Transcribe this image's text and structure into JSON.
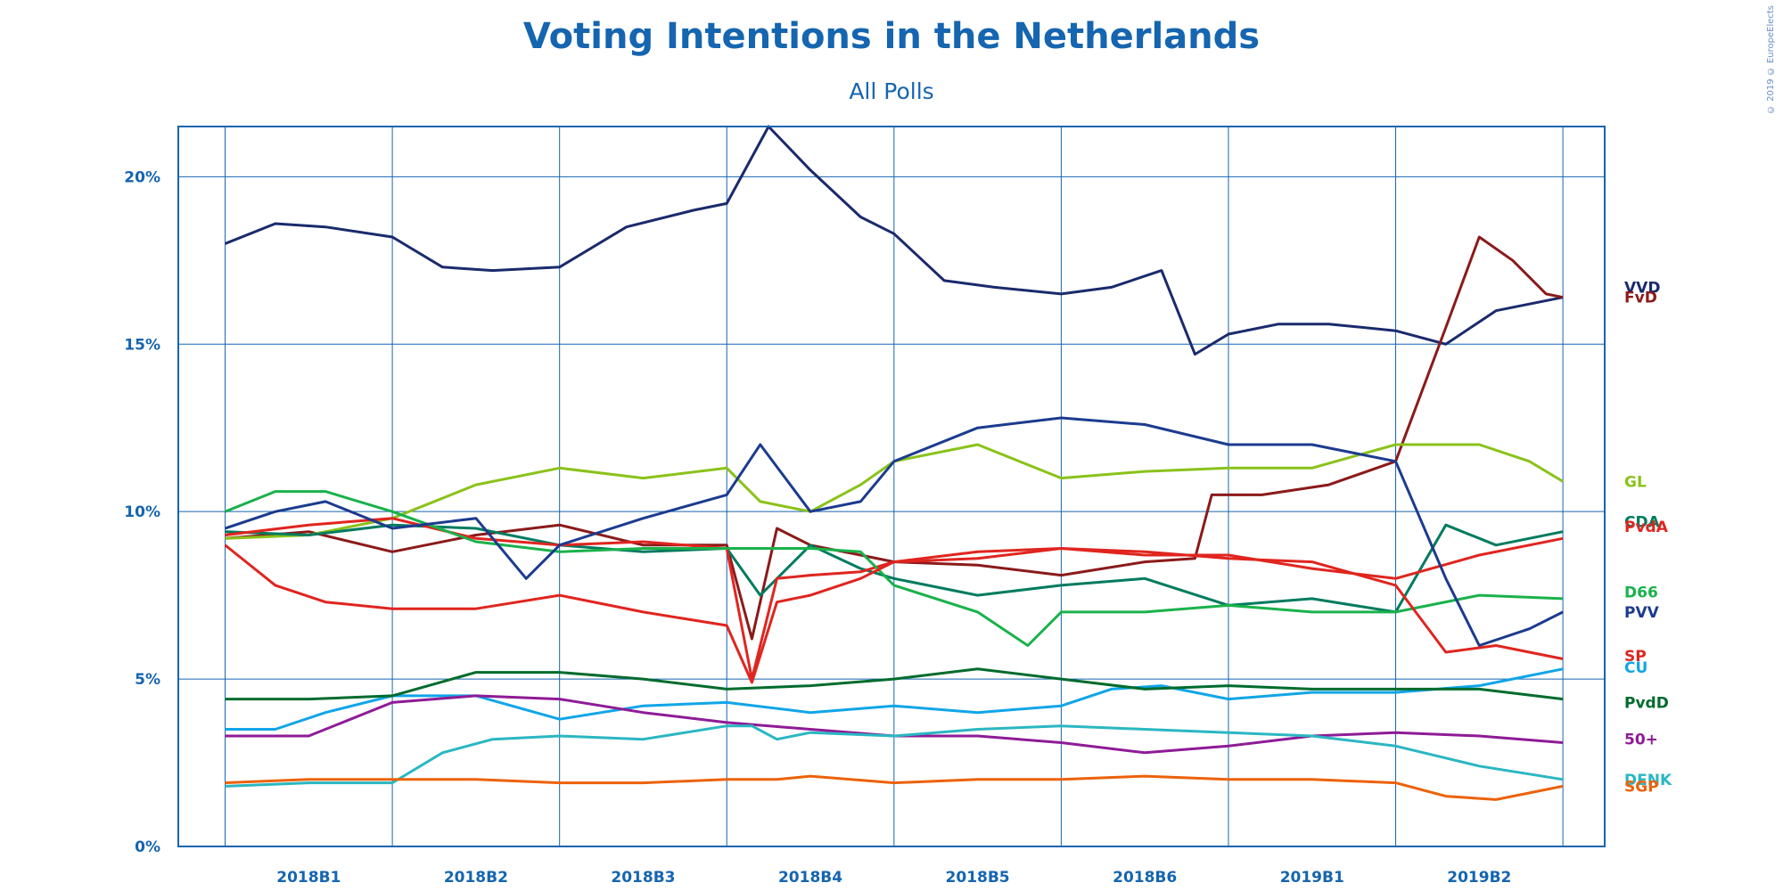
{
  "chart_data": {
    "type": "line",
    "title": "Voting Intentions in the Netherlands",
    "subtitle": "All Polls",
    "copyright": "© 2019 © EuropeElects",
    "ylabel": "",
    "xlabel": "",
    "ylim": [
      0,
      21.5
    ],
    "grid": true,
    "legend": "right",
    "y_ticks": [
      {
        "value": 0,
        "label": "0%"
      },
      {
        "value": 5,
        "label": "5%"
      },
      {
        "value": 10,
        "label": "10%"
      },
      {
        "value": 15,
        "label": "15%"
      },
      {
        "value": 20,
        "label": "20%"
      }
    ],
    "x_ticks": [
      "2018B1",
      "2018B2",
      "2018B3",
      "2018B4",
      "2018B5",
      "2018B6",
      "2019B1",
      "2019B2"
    ],
    "x_range": [
      -0.28,
      8.25
    ],
    "series": [
      {
        "name": "VVD",
        "color": "#1a2a6c",
        "label_value": 16.7,
        "x": [
          0,
          0.3,
          0.6,
          1.0,
          1.3,
          1.6,
          2.0,
          2.4,
          2.8,
          3.0,
          3.25,
          3.5,
          3.8,
          4.0,
          4.3,
          4.6,
          5.0,
          5.3,
          5.6,
          5.8,
          6.0,
          6.3,
          6.6,
          7.0,
          7.3,
          7.6,
          8.0
        ],
        "y": [
          18.0,
          18.6,
          18.5,
          18.2,
          17.3,
          17.2,
          17.3,
          18.5,
          19.0,
          19.2,
          21.5,
          20.2,
          18.8,
          18.3,
          16.9,
          16.7,
          16.5,
          16.7,
          17.2,
          14.7,
          15.3,
          15.6,
          15.6,
          15.4,
          15.0,
          16.0,
          16.4
        ]
      },
      {
        "name": "FvD",
        "color": "#8b1a1a",
        "label_value": 16.4,
        "x": [
          0,
          0.5,
          1.0,
          1.5,
          2.0,
          2.5,
          3.0,
          3.15,
          3.3,
          3.5,
          3.8,
          4.0,
          4.5,
          5.0,
          5.5,
          5.8,
          5.9,
          6.2,
          6.6,
          7.0,
          7.3,
          7.5,
          7.7,
          7.9,
          8.0
        ],
        "y": [
          9.2,
          9.4,
          8.8,
          9.3,
          9.6,
          9.0,
          9.0,
          6.2,
          9.5,
          9.0,
          8.7,
          8.5,
          8.4,
          8.1,
          8.5,
          8.6,
          10.5,
          10.5,
          10.8,
          11.5,
          15.5,
          18.2,
          17.5,
          16.5,
          16.4
        ]
      },
      {
        "name": "GL",
        "color": "#8ac21a",
        "label_value": 10.9,
        "x": [
          0,
          0.5,
          1.0,
          1.5,
          2.0,
          2.5,
          3.0,
          3.2,
          3.5,
          3.8,
          4.0,
          4.5,
          5.0,
          5.5,
          6.0,
          6.5,
          7.0,
          7.5,
          7.8,
          8.0
        ],
        "y": [
          9.2,
          9.3,
          9.8,
          10.8,
          11.3,
          11.0,
          11.3,
          10.3,
          10.0,
          10.8,
          11.5,
          12.0,
          11.0,
          11.2,
          11.3,
          11.3,
          12.0,
          12.0,
          11.5,
          10.9
        ]
      },
      {
        "name": "CDA",
        "color": "#007b5f",
        "label_value": 9.7,
        "x": [
          0,
          0.5,
          1.0,
          1.5,
          2.0,
          2.5,
          3.0,
          3.2,
          3.5,
          3.8,
          4.0,
          4.5,
          5.0,
          5.5,
          6.0,
          6.5,
          7.0,
          7.3,
          7.6,
          8.0
        ],
        "y": [
          9.4,
          9.3,
          9.6,
          9.5,
          9.0,
          8.8,
          8.9,
          7.5,
          9.0,
          8.3,
          8.0,
          7.5,
          7.8,
          8.0,
          7.2,
          7.4,
          7.0,
          9.6,
          9.0,
          9.4
        ]
      },
      {
        "name": "PvdA",
        "color": "#e0251f",
        "label_value": 9.55,
        "x": [
          0,
          0.5,
          1.0,
          1.5,
          2.0,
          2.5,
          3.0,
          3.15,
          3.3,
          3.5,
          3.8,
          4.0,
          4.5,
          5.0,
          5.5,
          6.0,
          6.5,
          7.0,
          7.5,
          8.0
        ],
        "y": [
          9.3,
          9.6,
          9.8,
          9.2,
          9.0,
          9.1,
          8.9,
          5.0,
          8.0,
          8.1,
          8.2,
          8.5,
          8.8,
          8.9,
          8.7,
          8.7,
          8.3,
          8.0,
          8.7,
          9.2
        ]
      },
      {
        "name": "D66",
        "color": "#19b24b",
        "label_value": 7.6,
        "x": [
          0,
          0.3,
          0.6,
          1.0,
          1.5,
          2.0,
          2.5,
          3.0,
          3.2,
          3.5,
          3.8,
          4.0,
          4.5,
          4.8,
          5.0,
          5.5,
          6.0,
          6.5,
          7.0,
          7.5,
          8.0
        ],
        "y": [
          10.0,
          10.6,
          10.6,
          10.0,
          9.1,
          8.8,
          8.9,
          8.9,
          8.9,
          8.9,
          8.8,
          7.8,
          7.0,
          6.0,
          7.0,
          7.0,
          7.2,
          7.0,
          7.0,
          7.5,
          7.4
        ]
      },
      {
        "name": "PVV",
        "color": "#1c3b8f",
        "label_value": 7.0,
        "x": [
          0,
          0.3,
          0.6,
          1.0,
          1.5,
          1.8,
          2.0,
          2.5,
          3.0,
          3.2,
          3.5,
          3.8,
          4.0,
          4.5,
          5.0,
          5.5,
          6.0,
          6.5,
          7.0,
          7.3,
          7.5,
          7.8,
          8.0
        ],
        "y": [
          9.5,
          10.0,
          10.3,
          9.5,
          9.8,
          8.0,
          9.0,
          9.8,
          10.5,
          12.0,
          10.0,
          10.3,
          11.5,
          12.5,
          12.8,
          12.6,
          12.0,
          12.0,
          11.5,
          8.0,
          6.0,
          6.5,
          7.0
        ]
      },
      {
        "name": "SP",
        "color": "#e0251f",
        "label_value": 5.7,
        "x": [
          0,
          0.3,
          0.6,
          1.0,
          1.5,
          2.0,
          2.5,
          3.0,
          3.15,
          3.3,
          3.5,
          3.8,
          4.0,
          4.5,
          5.0,
          5.5,
          6.0,
          6.5,
          7.0,
          7.3,
          7.6,
          8.0
        ],
        "y": [
          9.0,
          7.8,
          7.3,
          7.1,
          7.1,
          7.5,
          7.0,
          6.6,
          4.9,
          7.3,
          7.5,
          8.0,
          8.5,
          8.6,
          8.9,
          8.8,
          8.6,
          8.5,
          7.8,
          5.8,
          6.0,
          5.6
        ]
      },
      {
        "name": "CU",
        "color": "#10a5e8",
        "label_value": 5.35,
        "x": [
          0,
          0.3,
          0.6,
          1.0,
          1.5,
          2.0,
          2.5,
          3.0,
          3.5,
          4.0,
          4.5,
          5.0,
          5.3,
          5.6,
          6.0,
          6.5,
          7.0,
          7.5,
          8.0
        ],
        "y": [
          3.5,
          3.5,
          4.0,
          4.5,
          4.5,
          3.8,
          4.2,
          4.3,
          4.0,
          4.2,
          4.0,
          4.2,
          4.7,
          4.8,
          4.4,
          4.6,
          4.6,
          4.8,
          5.3
        ]
      },
      {
        "name": "PvdD",
        "color": "#006b2d",
        "label_value": 4.3,
        "x": [
          0,
          0.5,
          1.0,
          1.5,
          2.0,
          2.5,
          3.0,
          3.5,
          4.0,
          4.5,
          5.0,
          5.5,
          6.0,
          6.5,
          7.0,
          7.5,
          8.0
        ],
        "y": [
          4.4,
          4.4,
          4.5,
          5.2,
          5.2,
          5.0,
          4.7,
          4.8,
          5.0,
          5.3,
          5.0,
          4.7,
          4.8,
          4.7,
          4.7,
          4.7,
          4.4
        ]
      },
      {
        "name": "50+",
        "color": "#8e1b96",
        "label_value": 3.2,
        "x": [
          0,
          0.5,
          1.0,
          1.5,
          2.0,
          2.5,
          3.0,
          3.5,
          4.0,
          4.5,
          5.0,
          5.5,
          6.0,
          6.5,
          7.0,
          7.5,
          8.0
        ],
        "y": [
          3.3,
          3.3,
          4.3,
          4.5,
          4.4,
          4.0,
          3.7,
          3.5,
          3.3,
          3.3,
          3.1,
          2.8,
          3.0,
          3.3,
          3.4,
          3.3,
          3.1
        ]
      },
      {
        "name": "DENK",
        "color": "#2ab7c2",
        "label_value": 2.0,
        "x": [
          0,
          0.5,
          1.0,
          1.3,
          1.6,
          2.0,
          2.5,
          3.0,
          3.15,
          3.3,
          3.5,
          4.0,
          4.5,
          5.0,
          5.5,
          6.0,
          6.5,
          7.0,
          7.5,
          8.0
        ],
        "y": [
          1.8,
          1.9,
          1.9,
          2.8,
          3.2,
          3.3,
          3.2,
          3.6,
          3.6,
          3.2,
          3.4,
          3.3,
          3.5,
          3.6,
          3.5,
          3.4,
          3.3,
          3.0,
          2.4,
          2.0
        ]
      },
      {
        "name": "SGP",
        "color": "#ec6209",
        "label_value": 1.8,
        "x": [
          0,
          0.5,
          1.0,
          1.5,
          2.0,
          2.5,
          3.0,
          3.3,
          3.5,
          4.0,
          4.5,
          5.0,
          5.5,
          6.0,
          6.5,
          7.0,
          7.3,
          7.6,
          8.0
        ],
        "y": [
          1.9,
          2.0,
          2.0,
          2.0,
          1.9,
          1.9,
          2.0,
          2.0,
          2.1,
          1.9,
          2.0,
          2.0,
          2.1,
          2.0,
          2.0,
          1.9,
          1.5,
          1.4,
          1.8
        ]
      }
    ]
  }
}
